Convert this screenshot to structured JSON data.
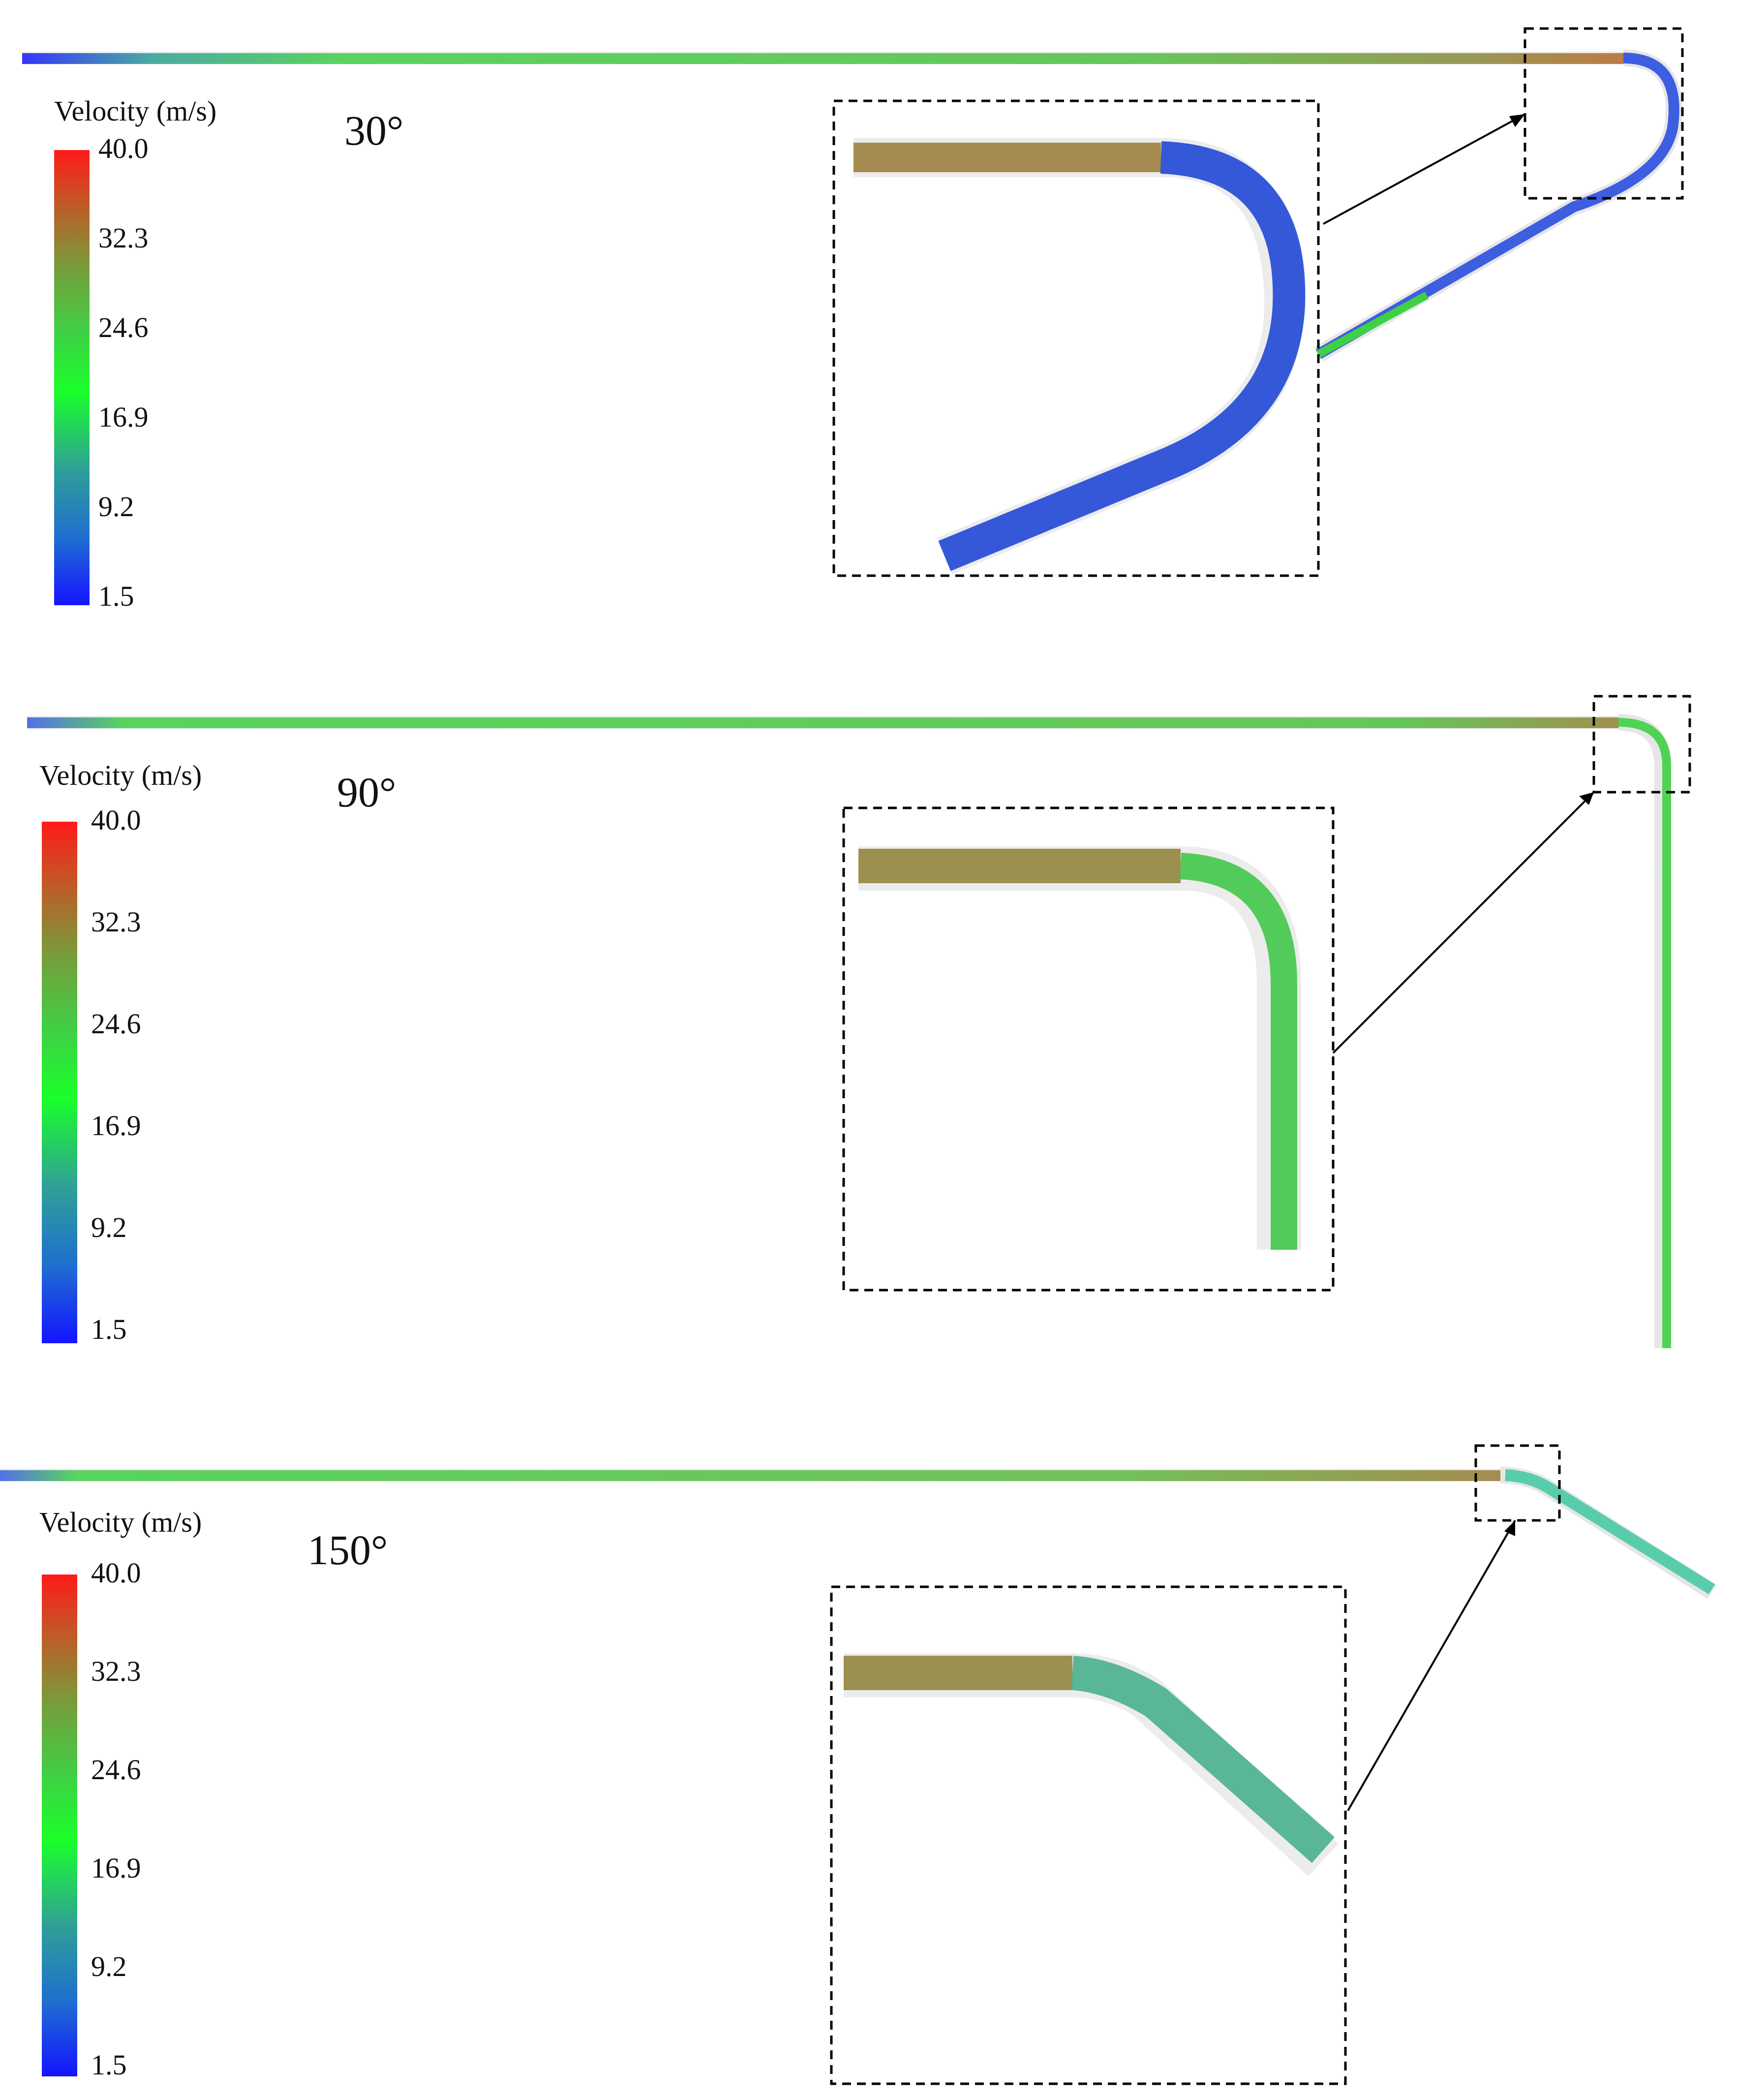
{
  "legend": {
    "title": "Velocity (m/s)",
    "ticks": [
      "40.0",
      "32.3",
      "24.6",
      "16.9",
      "9.2",
      "1.5"
    ],
    "gradient_colors": [
      "#1414ff",
      "#1f6fd0",
      "#2fa096",
      "#1aff2a",
      "#3fd045",
      "#7a9a3a",
      "#c05a26",
      "#ff1a1a"
    ]
  },
  "panels": [
    {
      "angle_label": "30°"
    },
    {
      "angle_label": "90°"
    },
    {
      "angle_label": "150°"
    }
  ],
  "colors": {
    "pipe_wall": "#e6e6e6",
    "low_velocity": "#1414ff",
    "mid_velocity": "#1aff2a",
    "high_velocity": "#ff1a1a",
    "callout_border": "#000000"
  }
}
